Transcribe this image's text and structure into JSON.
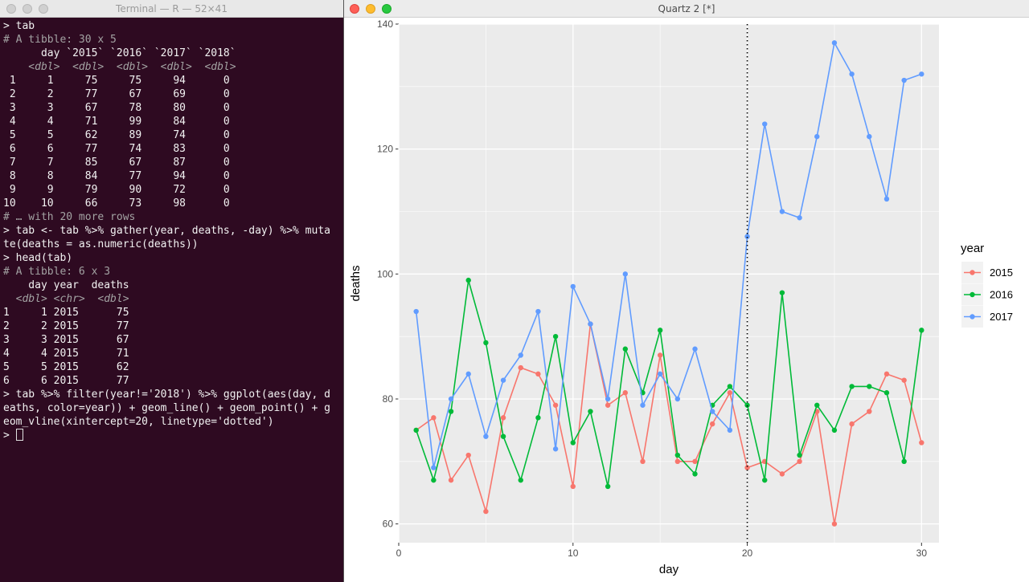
{
  "terminal": {
    "title": "Terminal — R — 52×41",
    "lines": [
      {
        "text": "> tab",
        "kind": "normal"
      },
      {
        "text": "# A tibble: 30 x 5",
        "kind": "dim"
      },
      {
        "text": "      day `2015` `2016` `2017` `2018`",
        "kind": "normal"
      },
      {
        "text": "    <dbl>  <dbl>  <dbl>  <dbl>  <dbl>",
        "kind": "typ"
      },
      {
        "text": " 1     1     75     75     94      0",
        "kind": "normal"
      },
      {
        "text": " 2     2     77     67     69      0",
        "kind": "normal"
      },
      {
        "text": " 3     3     67     78     80      0",
        "kind": "normal"
      },
      {
        "text": " 4     4     71     99     84      0",
        "kind": "normal"
      },
      {
        "text": " 5     5     62     89     74      0",
        "kind": "normal"
      },
      {
        "text": " 6     6     77     74     83      0",
        "kind": "normal"
      },
      {
        "text": " 7     7     85     67     87      0",
        "kind": "normal"
      },
      {
        "text": " 8     8     84     77     94      0",
        "kind": "normal"
      },
      {
        "text": " 9     9     79     90     72      0",
        "kind": "normal"
      },
      {
        "text": "10    10     66     73     98      0",
        "kind": "normal"
      },
      {
        "text": "# … with 20 more rows",
        "kind": "dim"
      },
      {
        "text": "> tab <- tab %>% gather(year, deaths, -day) %>% muta",
        "kind": "normal"
      },
      {
        "text": "te(deaths = as.numeric(deaths))",
        "kind": "normal"
      },
      {
        "text": "> head(tab)",
        "kind": "normal"
      },
      {
        "text": "# A tibble: 6 x 3",
        "kind": "dim"
      },
      {
        "text": "    day year  deaths",
        "kind": "normal"
      },
      {
        "text": "  <dbl> <chr>  <dbl>",
        "kind": "typ"
      },
      {
        "text": "1     1 2015      75",
        "kind": "normal"
      },
      {
        "text": "2     2 2015      77",
        "kind": "normal"
      },
      {
        "text": "3     3 2015      67",
        "kind": "normal"
      },
      {
        "text": "4     4 2015      71",
        "kind": "normal"
      },
      {
        "text": "5     5 2015      62",
        "kind": "normal"
      },
      {
        "text": "6     6 2015      77",
        "kind": "normal"
      },
      {
        "text": "> tab %>% filter(year!='2018') %>% ggplot(aes(day, d",
        "kind": "normal"
      },
      {
        "text": "eaths, color=year)) + geom_line() + geom_point() + g",
        "kind": "normal"
      },
      {
        "text": "eom_vline(xintercept=20, linetype='dotted')",
        "kind": "normal"
      },
      {
        "text": "> ",
        "kind": "prompt"
      }
    ]
  },
  "quartz": {
    "title": "Quartz 2 [*]"
  },
  "colors": {
    "2015": "#F8766D",
    "2016": "#00BA38",
    "2017": "#619CFF",
    "panel": "#EBEBEB",
    "grid": "#FFFFFF"
  },
  "chart_data": {
    "type": "line",
    "title": "",
    "xlabel": "day",
    "ylabel": "deaths",
    "xlim": [
      0,
      31
    ],
    "ylim": [
      57,
      140
    ],
    "x_ticks": [
      0,
      10,
      20,
      30
    ],
    "y_ticks": [
      60,
      80,
      100,
      120,
      140
    ],
    "grid": true,
    "vline": {
      "x": 20,
      "linetype": "dotted"
    },
    "legend": {
      "title": "year",
      "position": "right"
    },
    "x": [
      1,
      2,
      3,
      4,
      5,
      6,
      7,
      8,
      9,
      10,
      11,
      12,
      13,
      14,
      15,
      16,
      17,
      18,
      19,
      20,
      21,
      22,
      23,
      24,
      25,
      26,
      27,
      28,
      29,
      30
    ],
    "series": [
      {
        "name": "2015",
        "values": [
          75,
          77,
          67,
          71,
          62,
          77,
          85,
          84,
          79,
          66,
          92,
          79,
          81,
          70,
          87,
          70,
          70,
          76,
          81,
          69,
          70,
          68,
          70,
          78,
          60,
          76,
          78,
          84,
          83,
          73
        ]
      },
      {
        "name": "2016",
        "values": [
          75,
          67,
          78,
          99,
          89,
          74,
          67,
          77,
          90,
          73,
          78,
          66,
          88,
          81,
          91,
          71,
          68,
          79,
          82,
          79,
          67,
          97,
          71,
          79,
          75,
          82,
          82,
          81,
          70,
          91
        ]
      },
      {
        "name": "2017",
        "values": [
          94,
          69,
          80,
          84,
          74,
          83,
          87,
          94,
          72,
          98,
          92,
          80,
          100,
          79,
          84,
          80,
          88,
          78,
          75,
          106,
          124,
          110,
          109,
          122,
          137,
          132,
          122,
          112,
          131,
          132
        ]
      }
    ]
  }
}
